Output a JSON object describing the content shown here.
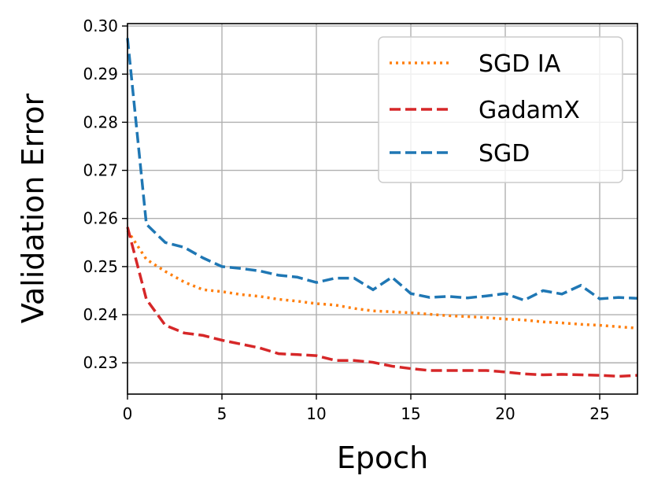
{
  "chart_data": {
    "type": "line",
    "xlabel": "Epoch",
    "ylabel": "Validation Error",
    "xlim": [
      0,
      27
    ],
    "ylim": [
      0.2235,
      0.3005
    ],
    "x_ticks": [
      0,
      5,
      10,
      15,
      20,
      25
    ],
    "y_ticks": [
      0.23,
      0.24,
      0.25,
      0.26,
      0.27,
      0.28,
      0.29,
      0.3
    ],
    "x_tick_labels": [
      "0",
      "5",
      "10",
      "15",
      "20",
      "25"
    ],
    "y_tick_labels": [
      "0.23",
      "0.24",
      "0.25",
      "0.26",
      "0.27",
      "0.28",
      "0.29",
      "0.30"
    ],
    "grid": true,
    "legend_position": "top-right",
    "series": [
      {
        "name": "SGD IA",
        "color": "#ff7f0e",
        "style": "dotted",
        "x": [
          0,
          1,
          2,
          3,
          4,
          5,
          6,
          7,
          8,
          9,
          10,
          11,
          12,
          13,
          14,
          15,
          16,
          17,
          18,
          19,
          20,
          21,
          22,
          23,
          24,
          25,
          26,
          27
        ],
        "y": [
          0.2575,
          0.2515,
          0.249,
          0.2468,
          0.2452,
          0.2448,
          0.2442,
          0.2438,
          0.2432,
          0.2428,
          0.2423,
          0.242,
          0.2413,
          0.2408,
          0.2406,
          0.2404,
          0.2401,
          0.2398,
          0.2396,
          0.2394,
          0.2391,
          0.2389,
          0.2385,
          0.2383,
          0.238,
          0.2378,
          0.2375,
          0.2372
        ]
      },
      {
        "name": "GadamX",
        "color": "#d62728",
        "style": "dashed",
        "x": [
          0,
          1,
          2,
          3,
          4,
          5,
          6,
          7,
          8,
          9,
          10,
          11,
          12,
          13,
          14,
          15,
          16,
          17,
          18,
          19,
          20,
          21,
          22,
          23,
          24,
          25,
          26,
          27
        ],
        "y": [
          0.2582,
          0.2432,
          0.2378,
          0.2362,
          0.2357,
          0.2347,
          0.2339,
          0.2331,
          0.2319,
          0.2317,
          0.2315,
          0.2305,
          0.2305,
          0.2301,
          0.2293,
          0.2288,
          0.2284,
          0.2284,
          0.2284,
          0.2284,
          0.2281,
          0.2277,
          0.2275,
          0.2276,
          0.2275,
          0.2274,
          0.2272,
          0.2274
        ]
      },
      {
        "name": "SGD",
        "color": "#1f77b4",
        "style": "dashed",
        "x": [
          0,
          1,
          2,
          3,
          4,
          5,
          6,
          7,
          8,
          9,
          10,
          11,
          12,
          13,
          14,
          15,
          16,
          17,
          18,
          19,
          20,
          21,
          22,
          23,
          24,
          25,
          26,
          27
        ],
        "y": [
          0.2975,
          0.2588,
          0.255,
          0.254,
          0.2518,
          0.25,
          0.2496,
          0.2491,
          0.2482,
          0.2478,
          0.2467,
          0.2476,
          0.2476,
          0.2452,
          0.2478,
          0.2444,
          0.2436,
          0.2438,
          0.2435,
          0.2439,
          0.2444,
          0.243,
          0.245,
          0.2443,
          0.2461,
          0.2433,
          0.2436,
          0.2434
        ]
      }
    ]
  }
}
